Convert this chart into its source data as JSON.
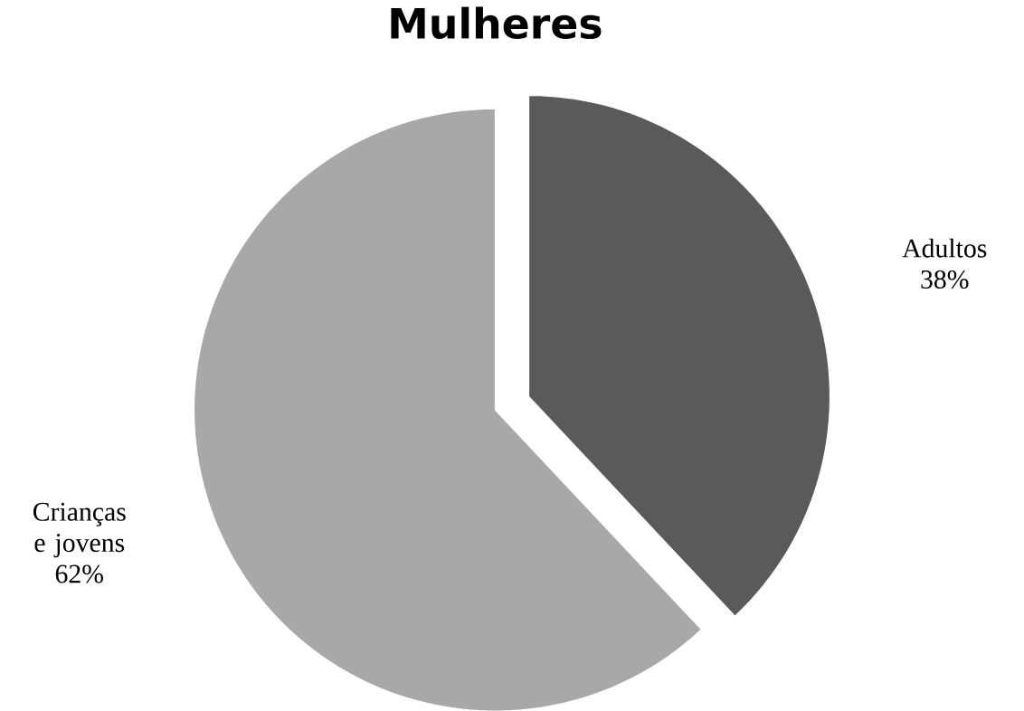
{
  "chart_data": {
    "type": "pie",
    "title": "Mulheres",
    "categories": [
      "Adultos",
      "Crianças e jovens"
    ],
    "values": [
      38,
      62
    ],
    "colors": [
      "#5a5a5a",
      "#a8a8a8"
    ],
    "value_labels": [
      "38%",
      "62%"
    ]
  }
}
